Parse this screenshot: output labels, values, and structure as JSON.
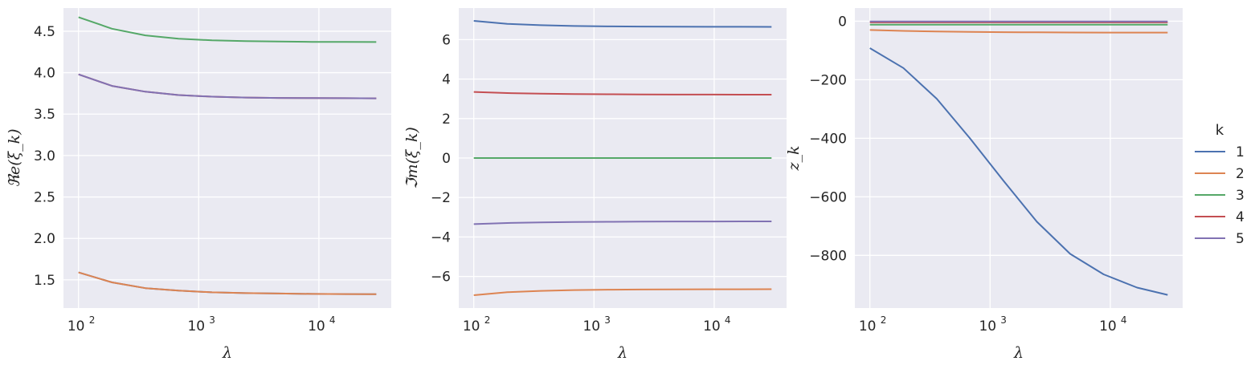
{
  "chart_data": [
    {
      "type": "line",
      "xlabel": "λ",
      "ylabel": "ℜe(ξ_k)",
      "xscale": "log",
      "xlim": [
        75,
        40000
      ],
      "ylim": [
        1.16,
        4.78
      ],
      "grid": true,
      "x_ticks": [
        100,
        1000,
        10000
      ],
      "x_tick_labels": [
        "10",
        "10",
        "10"
      ],
      "x_tick_exponents": [
        "2",
        "3",
        "4"
      ],
      "y_ticks": [
        1.5,
        2.0,
        2.5,
        3.0,
        3.5,
        4.0,
        4.5
      ],
      "y_tick_labels": [
        "1.5",
        "2.0",
        "2.5",
        "3.0",
        "3.5",
        "4.0",
        "4.5"
      ],
      "x": [
        100,
        190,
        360,
        680,
        1290,
        2450,
        4640,
        8800,
        16700,
        30000
      ],
      "series": [
        {
          "name": "1",
          "values": [
            1.59,
            1.47,
            1.4,
            1.37,
            1.35,
            1.34,
            1.335,
            1.33,
            1.328,
            1.327
          ]
        },
        {
          "name": "2",
          "values": [
            1.59,
            1.47,
            1.4,
            1.37,
            1.35,
            1.34,
            1.335,
            1.33,
            1.328,
            1.327
          ]
        },
        {
          "name": "3",
          "values": [
            4.67,
            4.53,
            4.45,
            4.41,
            4.39,
            4.38,
            4.375,
            4.372,
            4.371,
            4.37
          ]
        },
        {
          "name": "4",
          "values": [
            3.98,
            3.84,
            3.77,
            3.73,
            3.71,
            3.7,
            3.695,
            3.693,
            3.692,
            3.69
          ]
        },
        {
          "name": "5",
          "values": [
            3.98,
            3.84,
            3.77,
            3.73,
            3.71,
            3.7,
            3.695,
            3.693,
            3.692,
            3.69
          ]
        }
      ]
    },
    {
      "type": "line",
      "xlabel": "λ",
      "ylabel": "ℑm(ξ_k)",
      "xscale": "log",
      "xlim": [
        75,
        40000
      ],
      "ylim": [
        -7.6,
        7.6
      ],
      "grid": true,
      "x_ticks": [
        100,
        1000,
        10000
      ],
      "x_tick_labels": [
        "10",
        "10",
        "10"
      ],
      "x_tick_exponents": [
        "2",
        "3",
        "4"
      ],
      "y_ticks": [
        -6,
        -4,
        -2,
        0,
        2,
        4,
        6
      ],
      "y_tick_labels": [
        "−6",
        "−4",
        "−2",
        "0",
        "2",
        "4",
        "6"
      ],
      "x": [
        100,
        190,
        360,
        680,
        1290,
        2450,
        4640,
        8800,
        16700,
        30000
      ],
      "series": [
        {
          "name": "1",
          "values": [
            6.95,
            6.8,
            6.73,
            6.69,
            6.67,
            6.66,
            6.655,
            6.65,
            6.648,
            6.645
          ]
        },
        {
          "name": "2",
          "values": [
            -6.95,
            -6.8,
            -6.73,
            -6.69,
            -6.67,
            -6.66,
            -6.655,
            -6.65,
            -6.648,
            -6.645
          ]
        },
        {
          "name": "3",
          "values": [
            0,
            0,
            0,
            0,
            0,
            0,
            0,
            0,
            0,
            0
          ]
        },
        {
          "name": "4",
          "values": [
            3.35,
            3.29,
            3.26,
            3.24,
            3.23,
            3.22,
            3.215,
            3.213,
            3.212,
            3.21
          ]
        },
        {
          "name": "5",
          "values": [
            -3.35,
            -3.29,
            -3.26,
            -3.24,
            -3.23,
            -3.22,
            -3.215,
            -3.213,
            -3.212,
            -3.21
          ]
        }
      ]
    },
    {
      "type": "line",
      "xlabel": "λ",
      "ylabel": "z_k",
      "xscale": "log",
      "xlim": [
        75,
        40000
      ],
      "ylim": [
        -980,
        45
      ],
      "grid": true,
      "x_ticks": [
        100,
        1000,
        10000
      ],
      "x_tick_labels": [
        "10",
        "10",
        "10"
      ],
      "x_tick_exponents": [
        "2",
        "3",
        "4"
      ],
      "y_ticks": [
        -800,
        -600,
        -400,
        -200,
        0
      ],
      "y_tick_labels": [
        "−800",
        "−600",
        "−400",
        "−200",
        "0"
      ],
      "x": [
        100,
        190,
        360,
        680,
        1290,
        2450,
        4640,
        8800,
        16700,
        30000
      ],
      "series": [
        {
          "name": "1",
          "values": [
            -92,
            -160,
            -265,
            -400,
            -545,
            -685,
            -795,
            -865,
            -910,
            -935
          ]
        },
        {
          "name": "2",
          "values": [
            -30,
            -33,
            -35,
            -36.5,
            -37.5,
            -38,
            -38.5,
            -39,
            -39,
            -39
          ]
        },
        {
          "name": "3",
          "values": [
            -12,
            -12,
            -12,
            -12,
            -12,
            -12,
            -12,
            -12,
            -12,
            -12
          ]
        },
        {
          "name": "4",
          "values": [
            -4,
            -4,
            -4,
            -4,
            -4,
            -4,
            -4,
            -4,
            -4,
            -4
          ]
        },
        {
          "name": "5",
          "values": [
            -1,
            -1,
            -1,
            -1,
            -1,
            -1,
            -1,
            -1,
            -1,
            -1
          ]
        }
      ]
    }
  ],
  "legend": {
    "title": "k",
    "placement": "right",
    "entries": [
      {
        "label": "1",
        "color": "#4c72b0"
      },
      {
        "label": "2",
        "color": "#dd8452"
      },
      {
        "label": "3",
        "color": "#55a868"
      },
      {
        "label": "4",
        "color": "#c44e52"
      },
      {
        "label": "5",
        "color": "#8172b3"
      }
    ]
  },
  "colors": {
    "plot_background": "#eaeaf2",
    "grid": "#ffffff",
    "text": "#262626"
  }
}
